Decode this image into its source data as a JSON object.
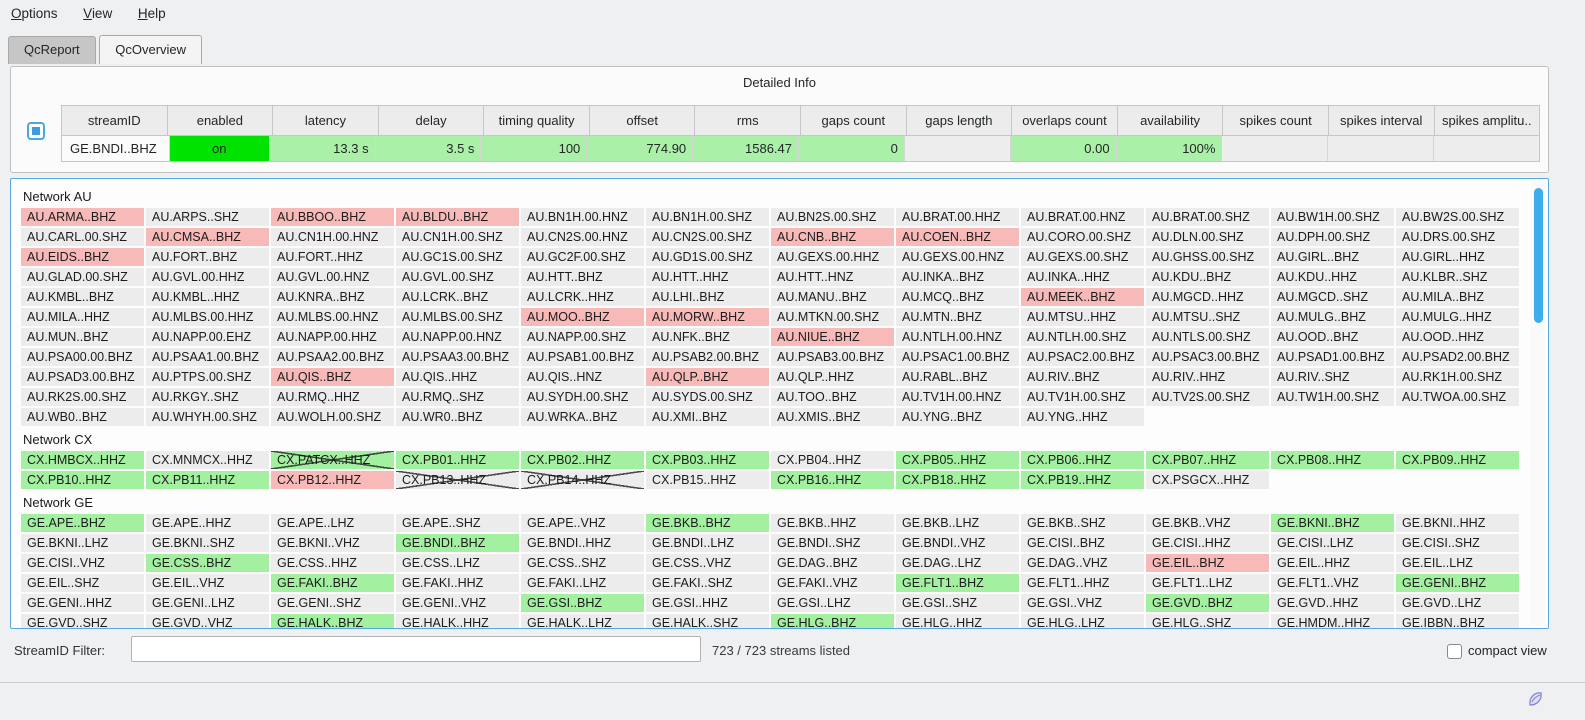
{
  "menu": {
    "items": [
      {
        "label": "Options"
      },
      {
        "label": "View"
      },
      {
        "label": "Help"
      }
    ]
  },
  "tabs": [
    {
      "label": "QcReport",
      "active": false
    },
    {
      "label": "QcOverview",
      "active": true
    }
  ],
  "detailed_info": {
    "title": "Detailed Info",
    "columns": [
      "streamID",
      "enabled",
      "latency",
      "delay",
      "timing quality",
      "offset",
      "rms",
      "gaps count",
      "gaps length",
      "overlaps count",
      "availability",
      "spikes count",
      "spikes interval",
      "spikes amplitu.."
    ],
    "row": {
      "cells": [
        {
          "text": "GE.BNDI..BHZ",
          "state": "plain",
          "align": "left"
        },
        {
          "text": "on",
          "state": "bright-green",
          "align": "center"
        },
        {
          "text": "13.3 s",
          "state": "green",
          "align": "right"
        },
        {
          "text": "3.5 s",
          "state": "green",
          "align": "right"
        },
        {
          "text": "100",
          "state": "green",
          "align": "right"
        },
        {
          "text": "774.90",
          "state": "green",
          "align": "right"
        },
        {
          "text": "1586.47",
          "state": "green",
          "align": "right"
        },
        {
          "text": "0",
          "state": "green",
          "align": "right"
        },
        {
          "text": "",
          "state": "empty",
          "align": "right"
        },
        {
          "text": "0.00",
          "state": "green",
          "align": "right"
        },
        {
          "text": "100%",
          "state": "green",
          "align": "right"
        },
        {
          "text": "",
          "state": "empty",
          "align": "right"
        },
        {
          "text": "",
          "state": "empty",
          "align": "right"
        },
        {
          "text": "",
          "state": "empty",
          "align": "right"
        }
      ]
    }
  },
  "networks": [
    {
      "name": "Network AU",
      "rows": [
        [
          [
            "AU.ARMA..BHZ",
            "p"
          ],
          [
            "AU.ARPS..SHZ",
            "n"
          ],
          [
            "AU.BBOO..BHZ",
            "p"
          ],
          [
            "AU.BLDU..BHZ",
            "p"
          ],
          [
            "AU.BN1H.00.HNZ",
            "n"
          ],
          [
            "AU.BN1H.00.SHZ",
            "n"
          ],
          [
            "AU.BN2S.00.SHZ",
            "n"
          ],
          [
            "AU.BRAT.00.HHZ",
            "n"
          ],
          [
            "AU.BRAT.00.HNZ",
            "n"
          ],
          [
            "AU.BRAT.00.SHZ",
            "n"
          ],
          [
            "AU.BW1H.00.SHZ",
            "n"
          ],
          [
            "AU.BW2S.00.SHZ",
            "n"
          ]
        ],
        [
          [
            "AU.CARL.00.SHZ",
            "n"
          ],
          [
            "AU.CMSA..BHZ",
            "p"
          ],
          [
            "AU.CN1H.00.HNZ",
            "n"
          ],
          [
            "AU.CN1H.00.SHZ",
            "n"
          ],
          [
            "AU.CN2S.00.HNZ",
            "n"
          ],
          [
            "AU.CN2S.00.SHZ",
            "n"
          ],
          [
            "AU.CNB..BHZ",
            "p"
          ],
          [
            "AU.COEN..BHZ",
            "p"
          ],
          [
            "AU.CORO.00.SHZ",
            "n"
          ],
          [
            "AU.DLN.00.SHZ",
            "n"
          ],
          [
            "AU.DPH.00.SHZ",
            "n"
          ],
          [
            "AU.DRS.00.SHZ",
            "n"
          ]
        ],
        [
          [
            "AU.EIDS..BHZ",
            "p"
          ],
          [
            "AU.FORT..BHZ",
            "n"
          ],
          [
            "AU.FORT..HHZ",
            "n"
          ],
          [
            "AU.GC1S.00.SHZ",
            "n"
          ],
          [
            "AU.GC2F.00.SHZ",
            "n"
          ],
          [
            "AU.GD1S.00.SHZ",
            "n"
          ],
          [
            "AU.GEXS.00.HHZ",
            "n"
          ],
          [
            "AU.GEXS.00.HNZ",
            "n"
          ],
          [
            "AU.GEXS.00.SHZ",
            "n"
          ],
          [
            "AU.GHSS.00.SHZ",
            "n"
          ],
          [
            "AU.GIRL..BHZ",
            "n"
          ],
          [
            "AU.GIRL..HHZ",
            "n"
          ]
        ],
        [
          [
            "AU.GLAD.00.SHZ",
            "n"
          ],
          [
            "AU.GVL.00.HHZ",
            "n"
          ],
          [
            "AU.GVL.00.HNZ",
            "n"
          ],
          [
            "AU.GVL.00.SHZ",
            "n"
          ],
          [
            "AU.HTT..BHZ",
            "n"
          ],
          [
            "AU.HTT..HHZ",
            "n"
          ],
          [
            "AU.HTT..HNZ",
            "n"
          ],
          [
            "AU.INKA..BHZ",
            "n"
          ],
          [
            "AU.INKA..HHZ",
            "n"
          ],
          [
            "AU.KDU..BHZ",
            "n"
          ],
          [
            "AU.KDU..HHZ",
            "n"
          ],
          [
            "AU.KLBR..SHZ",
            "n"
          ]
        ],
        [
          [
            "AU.KMBL..BHZ",
            "n"
          ],
          [
            "AU.KMBL..HHZ",
            "n"
          ],
          [
            "AU.KNRA..BHZ",
            "n"
          ],
          [
            "AU.LCRK..BHZ",
            "n"
          ],
          [
            "AU.LCRK..HHZ",
            "n"
          ],
          [
            "AU.LHI..BHZ",
            "n"
          ],
          [
            "AU.MANU..BHZ",
            "n"
          ],
          [
            "AU.MCQ..BHZ",
            "n"
          ],
          [
            "AU.MEEK..BHZ",
            "p"
          ],
          [
            "AU.MGCD..HHZ",
            "n"
          ],
          [
            "AU.MGCD..SHZ",
            "n"
          ],
          [
            "AU.MILA..BHZ",
            "n"
          ]
        ],
        [
          [
            "AU.MILA..HHZ",
            "n"
          ],
          [
            "AU.MLBS.00.HHZ",
            "n"
          ],
          [
            "AU.MLBS.00.HNZ",
            "n"
          ],
          [
            "AU.MLBS.00.SHZ",
            "n"
          ],
          [
            "AU.MOO..BHZ",
            "p"
          ],
          [
            "AU.MORW..BHZ",
            "p"
          ],
          [
            "AU.MTKN.00.SHZ",
            "n"
          ],
          [
            "AU.MTN..BHZ",
            "n"
          ],
          [
            "AU.MTSU..HHZ",
            "n"
          ],
          [
            "AU.MTSU..SHZ",
            "n"
          ],
          [
            "AU.MULG..BHZ",
            "n"
          ],
          [
            "AU.MULG..HHZ",
            "n"
          ]
        ],
        [
          [
            "AU.MUN..BHZ",
            "n"
          ],
          [
            "AU.NAPP.00.EHZ",
            "n"
          ],
          [
            "AU.NAPP.00.HHZ",
            "n"
          ],
          [
            "AU.NAPP.00.HNZ",
            "n"
          ],
          [
            "AU.NAPP.00.SHZ",
            "n"
          ],
          [
            "AU.NFK..BHZ",
            "n"
          ],
          [
            "AU.NIUE..BHZ",
            "p"
          ],
          [
            "AU.NTLH.00.HNZ",
            "n"
          ],
          [
            "AU.NTLH.00.SHZ",
            "n"
          ],
          [
            "AU.NTLS.00.SHZ",
            "n"
          ],
          [
            "AU.OOD..BHZ",
            "n"
          ],
          [
            "AU.OOD..HHZ",
            "n"
          ]
        ],
        [
          [
            "AU.PSA00.00.BHZ",
            "n"
          ],
          [
            "AU.PSAA1.00.BHZ",
            "n"
          ],
          [
            "AU.PSAA2.00.BHZ",
            "n"
          ],
          [
            "AU.PSAA3.00.BHZ",
            "n"
          ],
          [
            "AU.PSAB1.00.BHZ",
            "n"
          ],
          [
            "AU.PSAB2.00.BHZ",
            "n"
          ],
          [
            "AU.PSAB3.00.BHZ",
            "n"
          ],
          [
            "AU.PSAC1.00.BHZ",
            "n"
          ],
          [
            "AU.PSAC2.00.BHZ",
            "n"
          ],
          [
            "AU.PSAC3.00.BHZ",
            "n"
          ],
          [
            "AU.PSAD1.00.BHZ",
            "n"
          ],
          [
            "AU.PSAD2.00.BHZ",
            "n"
          ]
        ],
        [
          [
            "AU.PSAD3.00.BHZ",
            "n"
          ],
          [
            "AU.PTPS.00.SHZ",
            "n"
          ],
          [
            "AU.QIS..BHZ",
            "p"
          ],
          [
            "AU.QIS..HHZ",
            "n"
          ],
          [
            "AU.QIS..HNZ",
            "n"
          ],
          [
            "AU.QLP..BHZ",
            "p"
          ],
          [
            "AU.QLP..HHZ",
            "n"
          ],
          [
            "AU.RABL..BHZ",
            "n"
          ],
          [
            "AU.RIV..BHZ",
            "n"
          ],
          [
            "AU.RIV..HHZ",
            "n"
          ],
          [
            "AU.RIV..SHZ",
            "n"
          ],
          [
            "AU.RK1H.00.SHZ",
            "n"
          ]
        ],
        [
          [
            "AU.RK2S.00.SHZ",
            "n"
          ],
          [
            "AU.RKGY..SHZ",
            "n"
          ],
          [
            "AU.RMQ..HHZ",
            "n"
          ],
          [
            "AU.RMQ..SHZ",
            "n"
          ],
          [
            "AU.SYDH.00.SHZ",
            "n"
          ],
          [
            "AU.SYDS.00.SHZ",
            "n"
          ],
          [
            "AU.TOO..BHZ",
            "n"
          ],
          [
            "AU.TV1H.00.HNZ",
            "n"
          ],
          [
            "AU.TV1H.00.SHZ",
            "n"
          ],
          [
            "AU.TV2S.00.SHZ",
            "n"
          ],
          [
            "AU.TW1H.00.SHZ",
            "n"
          ],
          [
            "AU.TWOA.00.SHZ",
            "n"
          ]
        ],
        [
          [
            "AU.WB0..BHZ",
            "n"
          ],
          [
            "AU.WHYH.00.SHZ",
            "n"
          ],
          [
            "AU.WOLH.00.SHZ",
            "n"
          ],
          [
            "AU.WR0..BHZ",
            "n"
          ],
          [
            "AU.WRKA..BHZ",
            "n"
          ],
          [
            "AU.XMI..BHZ",
            "n"
          ],
          [
            "AU.XMIS..BHZ",
            "n"
          ],
          [
            "AU.YNG..BHZ",
            "n"
          ],
          [
            "AU.YNG..HHZ",
            "n"
          ]
        ]
      ]
    },
    {
      "name": "Network CX",
      "rows": [
        [
          [
            "CX.HMBCX..HHZ",
            "g"
          ],
          [
            "CX.MNMCX..HHZ",
            "n"
          ],
          [
            "CX.PATCX..HHZ",
            "gx"
          ],
          [
            "CX.PB01..HHZ",
            "g"
          ],
          [
            "CX.PB02..HHZ",
            "g"
          ],
          [
            "CX.PB03..HHZ",
            "g"
          ],
          [
            "CX.PB04..HHZ",
            "n"
          ],
          [
            "CX.PB05..HHZ",
            "g"
          ],
          [
            "CX.PB06..HHZ",
            "g"
          ],
          [
            "CX.PB07..HHZ",
            "g"
          ],
          [
            "CX.PB08..HHZ",
            "g"
          ],
          [
            "CX.PB09..HHZ",
            "g"
          ]
        ],
        [
          [
            "CX.PB10..HHZ",
            "g"
          ],
          [
            "CX.PB11..HHZ",
            "g"
          ],
          [
            "CX.PB12..HHZ",
            "p"
          ],
          [
            "CX.PB13..HHZ",
            "nx"
          ],
          [
            "CX.PB14..HHZ",
            "nx"
          ],
          [
            "CX.PB15..HHZ",
            "n"
          ],
          [
            "CX.PB16..HHZ",
            "g"
          ],
          [
            "CX.PB18..HHZ",
            "g"
          ],
          [
            "CX.PB19..HHZ",
            "g"
          ],
          [
            "CX.PSGCX..HHZ",
            "n"
          ]
        ]
      ]
    },
    {
      "name": "Network GE",
      "rows": [
        [
          [
            "GE.APE..BHZ",
            "g"
          ],
          [
            "GE.APE..HHZ",
            "n"
          ],
          [
            "GE.APE..LHZ",
            "n"
          ],
          [
            "GE.APE..SHZ",
            "n"
          ],
          [
            "GE.APE..VHZ",
            "n"
          ],
          [
            "GE.BKB..BHZ",
            "g"
          ],
          [
            "GE.BKB..HHZ",
            "n"
          ],
          [
            "GE.BKB..LHZ",
            "n"
          ],
          [
            "GE.BKB..SHZ",
            "n"
          ],
          [
            "GE.BKB..VHZ",
            "n"
          ],
          [
            "GE.BKNI..BHZ",
            "g"
          ],
          [
            "GE.BKNI..HHZ",
            "n"
          ]
        ],
        [
          [
            "GE.BKNI..LHZ",
            "n"
          ],
          [
            "GE.BKNI..SHZ",
            "n"
          ],
          [
            "GE.BKNI..VHZ",
            "n"
          ],
          [
            "GE.BNDI..BHZ",
            "g"
          ],
          [
            "GE.BNDI..HHZ",
            "n"
          ],
          [
            "GE.BNDI..LHZ",
            "n"
          ],
          [
            "GE.BNDI..SHZ",
            "n"
          ],
          [
            "GE.BNDI..VHZ",
            "n"
          ],
          [
            "GE.CISI..BHZ",
            "n"
          ],
          [
            "GE.CISI..HHZ",
            "n"
          ],
          [
            "GE.CISI..LHZ",
            "n"
          ],
          [
            "GE.CISI..SHZ",
            "n"
          ]
        ],
        [
          [
            "GE.CISI..VHZ",
            "n"
          ],
          [
            "GE.CSS..BHZ",
            "g"
          ],
          [
            "GE.CSS..HHZ",
            "n"
          ],
          [
            "GE.CSS..LHZ",
            "n"
          ],
          [
            "GE.CSS..SHZ",
            "n"
          ],
          [
            "GE.CSS..VHZ",
            "n"
          ],
          [
            "GE.DAG..BHZ",
            "n"
          ],
          [
            "GE.DAG..LHZ",
            "n"
          ],
          [
            "GE.DAG..VHZ",
            "n"
          ],
          [
            "GE.EIL..BHZ",
            "p"
          ],
          [
            "GE.EIL..HHZ",
            "n"
          ],
          [
            "GE.EIL..LHZ",
            "n"
          ]
        ],
        [
          [
            "GE.EIL..SHZ",
            "n"
          ],
          [
            "GE.EIL..VHZ",
            "n"
          ],
          [
            "GE.FAKI..BHZ",
            "g"
          ],
          [
            "GE.FAKI..HHZ",
            "n"
          ],
          [
            "GE.FAKI..LHZ",
            "n"
          ],
          [
            "GE.FAKI..SHZ",
            "n"
          ],
          [
            "GE.FAKI..VHZ",
            "n"
          ],
          [
            "GE.FLT1..BHZ",
            "g"
          ],
          [
            "GE.FLT1..HHZ",
            "n"
          ],
          [
            "GE.FLT1..LHZ",
            "n"
          ],
          [
            "GE.FLT1..VHZ",
            "n"
          ],
          [
            "GE.GENI..BHZ",
            "g"
          ]
        ],
        [
          [
            "GE.GENI..HHZ",
            "n"
          ],
          [
            "GE.GENI..LHZ",
            "n"
          ],
          [
            "GE.GENI..SHZ",
            "n"
          ],
          [
            "GE.GENI..VHZ",
            "n"
          ],
          [
            "GE.GSI..BHZ",
            "g"
          ],
          [
            "GE.GSI..HHZ",
            "n"
          ],
          [
            "GE.GSI..LHZ",
            "n"
          ],
          [
            "GE.GSI..SHZ",
            "n"
          ],
          [
            "GE.GSI..VHZ",
            "n"
          ],
          [
            "GE.GVD..BHZ",
            "g"
          ],
          [
            "GE.GVD..HHZ",
            "n"
          ],
          [
            "GE.GVD..LHZ",
            "n"
          ]
        ],
        [
          [
            "GE.GVD..SHZ",
            "n"
          ],
          [
            "GE.GVD..VHZ",
            "n"
          ],
          [
            "GE.HALK..BHZ",
            "g"
          ],
          [
            "GE.HALK..HHZ",
            "n"
          ],
          [
            "GE.HALK..LHZ",
            "n"
          ],
          [
            "GE.HALK..SHZ",
            "n"
          ],
          [
            "GE.HLG..BHZ",
            "g"
          ],
          [
            "GE.HLG..HHZ",
            "n"
          ],
          [
            "GE.HLG..LHZ",
            "n"
          ],
          [
            "GE.HLG..SHZ",
            "n"
          ],
          [
            "GE.HMDM..HHZ",
            "n"
          ],
          [
            "GE.IBBN..BHZ",
            "n"
          ]
        ]
      ]
    }
  ],
  "footer": {
    "filter_label": "StreamID Filter:",
    "filter_value": "",
    "count_text": "723 / 723 streams listed",
    "compact_label": "compact view",
    "compact_checked": false
  },
  "colors": {
    "alert_pink": "#f8b9b9",
    "ok_green": "#a2f0a0",
    "neutral_gray": "#ececec",
    "enabled_green": "#00e300",
    "detail_green": "#abf0a8",
    "accent_blue": "#3daee9"
  }
}
